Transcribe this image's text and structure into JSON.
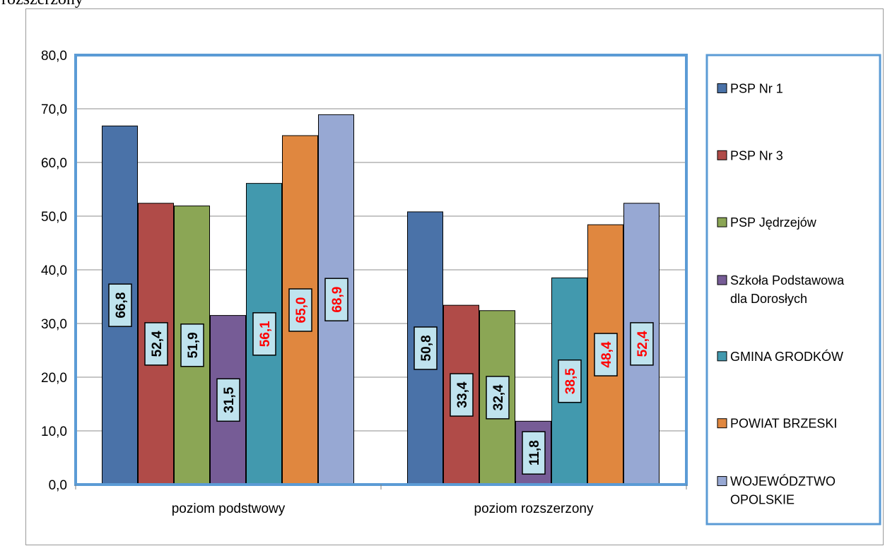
{
  "top_caption": "rozszerzony",
  "colors": {
    "plot_border": "#5B9BD5",
    "grid": "#8c8c8c",
    "label_box_fill": "#BFE3EE",
    "label_black": "#000000",
    "label_red": "#FF0000"
  },
  "chart_data": {
    "type": "bar",
    "title": "",
    "xlabel": "",
    "ylabel": "",
    "categories": [
      "poziom podstwowy",
      "poziom rozszerzony"
    ],
    "ylim": [
      0,
      80
    ],
    "yticks": [
      "0,0",
      "10,0",
      "20,0",
      "30,0",
      "40,0",
      "50,0",
      "60,0",
      "70,0",
      "80,0"
    ],
    "grid": true,
    "legend_position": "right",
    "series": [
      {
        "name": "PSP Nr 1",
        "values": [
          66.8,
          50.8
        ],
        "labels": [
          "66,8",
          "50,8"
        ],
        "color": "#4A72A8",
        "label_color": "#000000"
      },
      {
        "name": "PSP Nr 3",
        "values": [
          52.4,
          33.4
        ],
        "labels": [
          "52,4",
          "33,4"
        ],
        "color": "#B04B48",
        "label_color": "#000000"
      },
      {
        "name": "PSP Jędrzejów",
        "values": [
          51.9,
          32.4
        ],
        "labels": [
          "51,9",
          "32,4"
        ],
        "color": "#8BA655",
        "label_color": "#000000"
      },
      {
        "name": "Szkoła Podstawowa dla Dorosłych",
        "values": [
          31.5,
          11.8
        ],
        "labels": [
          "31,5",
          "11,8"
        ],
        "color": "#765C96",
        "label_color": "#000000"
      },
      {
        "name": "GMINA GRODKÓW",
        "values": [
          56.1,
          38.5
        ],
        "labels": [
          "56,1",
          "38,5"
        ],
        "color": "#4299AE",
        "label_color": "#FF0000"
      },
      {
        "name": "POWIAT BRZESKI",
        "values": [
          65.0,
          48.4
        ],
        "labels": [
          "65,0",
          "48,4"
        ],
        "color": "#E0873F",
        "label_color": "#FF0000"
      },
      {
        "name": "WOJEWÓDZTWO OPOLSKIE",
        "values": [
          68.9,
          52.4
        ],
        "labels": [
          "68,9",
          "52,4"
        ],
        "color": "#97A8D3",
        "label_color": "#FF0000"
      }
    ],
    "legend_lines": [
      [
        "PSP Nr 1"
      ],
      [
        "PSP Nr 3"
      ],
      [
        "PSP Jędrzejów"
      ],
      [
        "Szkoła Podstawowa",
        "dla Dorosłych"
      ],
      [
        "GMINA GRODKÓW"
      ],
      [
        "POWIAT BRZESKI"
      ],
      [
        "WOJEWÓDZTWO",
        "OPOLSKIE"
      ]
    ]
  }
}
